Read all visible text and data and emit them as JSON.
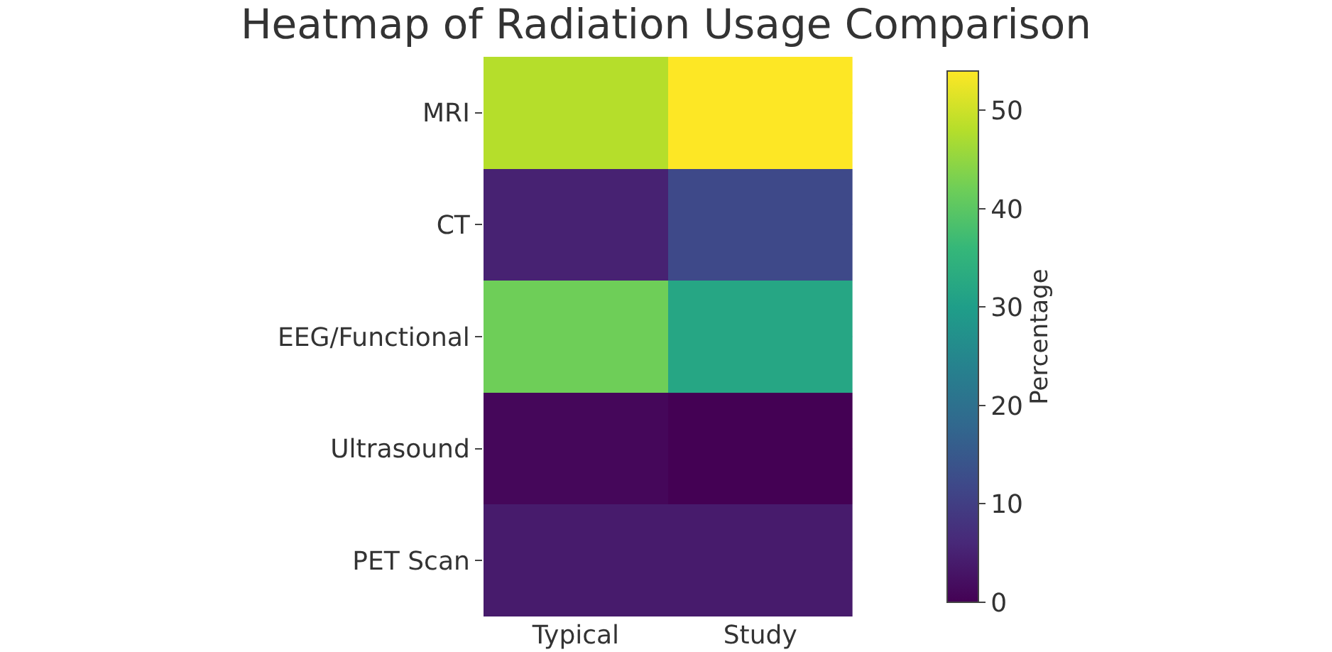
{
  "chart_data": {
    "type": "heatmap",
    "title": "Heatmap of Radiation Usage Comparison",
    "clabel": "Percentage",
    "categories": [
      "Typical",
      "Study"
    ],
    "y_categories": [
      "MRI",
      "CT",
      "EEG/Functional",
      "Ultrasound",
      "PET Scan"
    ],
    "cells": [
      [
        48,
        54
      ],
      [
        5,
        12
      ],
      [
        42,
        32
      ],
      [
        1,
        0
      ],
      [
        4,
        4
      ]
    ],
    "clim": [
      0,
      54
    ],
    "cticks": [
      0,
      10,
      20,
      30,
      40,
      50
    ],
    "grid": true
  }
}
